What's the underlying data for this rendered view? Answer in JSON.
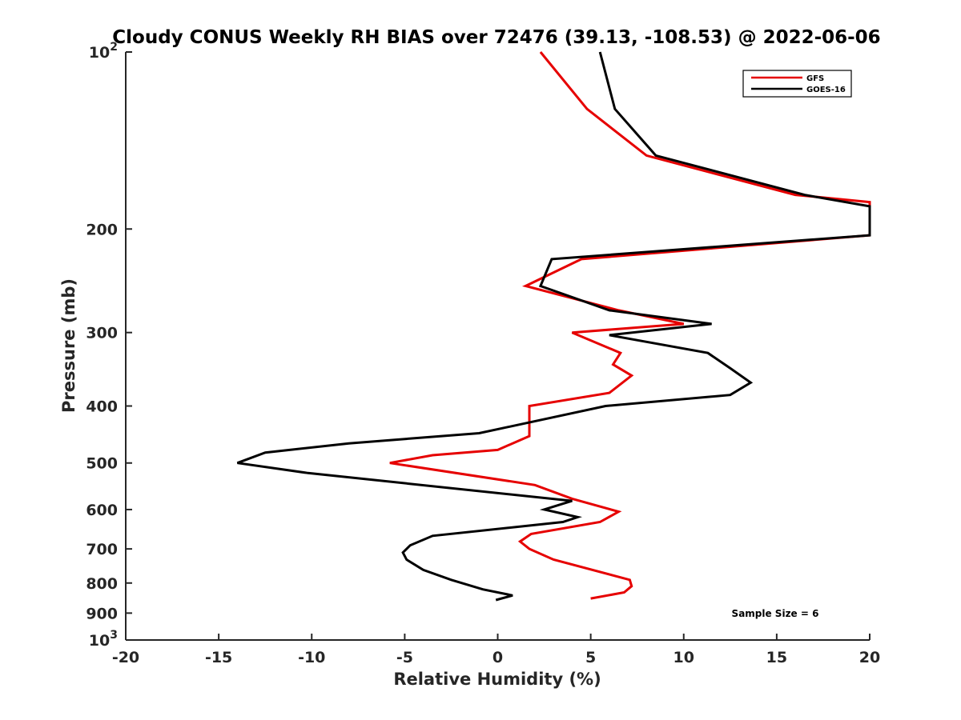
{
  "chart_data": {
    "type": "line",
    "title": "Cloudy CONUS Weekly RH BIAS over 72476 (39.13, -108.53) @ 2022-06-06",
    "xlabel": "Relative Humidity (%)",
    "ylabel": "Pressure (mb)",
    "xlim": [
      -20,
      20
    ],
    "ylim": [
      100,
      1000
    ],
    "yscale": "log",
    "y_reversed": true,
    "xticks": [
      -20,
      -15,
      -10,
      -5,
      0,
      5,
      10,
      15,
      20
    ],
    "xtick_labels": [
      "-20",
      "-15",
      "-10",
      "-5",
      "0",
      "5",
      "10",
      "15",
      "20"
    ],
    "yticks": [
      {
        "value": 100,
        "base": "10",
        "exp": "2"
      },
      {
        "value": 200,
        "label": "200"
      },
      {
        "value": 300,
        "label": "300"
      },
      {
        "value": 400,
        "label": "400"
      },
      {
        "value": 500,
        "label": "500"
      },
      {
        "value": 600,
        "label": "600"
      },
      {
        "value": 700,
        "label": "700"
      },
      {
        "value": 800,
        "label": "800"
      },
      {
        "value": 900,
        "label": "900"
      },
      {
        "value": 1000,
        "base": "10",
        "exp": "3"
      }
    ],
    "grid": false,
    "legend": {
      "position": "top-right",
      "entries": [
        "GFS",
        "GOES-16"
      ]
    },
    "annotation": "Sample Size = 6",
    "series": [
      {
        "name": "GFS",
        "color": "#e60000",
        "points": [
          [
            2.3,
            100
          ],
          [
            4.8,
            125
          ],
          [
            8.0,
            150
          ],
          [
            16.0,
            175
          ],
          [
            20.0,
            180
          ],
          [
            20.0,
            205
          ],
          [
            4.5,
            225
          ],
          [
            1.5,
            250
          ],
          [
            6.5,
            275
          ],
          [
            10.0,
            290
          ],
          [
            4.0,
            300
          ],
          [
            6.6,
            325
          ],
          [
            6.2,
            340
          ],
          [
            7.2,
            355
          ],
          [
            6.0,
            380
          ],
          [
            1.7,
            400
          ],
          [
            1.7,
            450
          ],
          [
            0.0,
            475
          ],
          [
            -3.5,
            485
          ],
          [
            -5.8,
            500
          ],
          [
            2.0,
            545
          ],
          [
            4.0,
            575
          ],
          [
            6.5,
            605
          ],
          [
            5.5,
            630
          ],
          [
            1.8,
            660
          ],
          [
            1.2,
            680
          ],
          [
            1.7,
            700
          ],
          [
            3.0,
            730
          ],
          [
            7.1,
            790
          ],
          [
            7.2,
            810
          ],
          [
            6.8,
            830
          ],
          [
            5.0,
            850
          ]
        ]
      },
      {
        "name": "GOES-16",
        "color": "#000000",
        "points": [
          [
            5.5,
            100
          ],
          [
            6.3,
            125
          ],
          [
            8.5,
            150
          ],
          [
            16.5,
            175
          ],
          [
            20.0,
            183
          ],
          [
            20.0,
            205
          ],
          [
            2.9,
            225
          ],
          [
            2.3,
            250
          ],
          [
            6.0,
            275
          ],
          [
            11.5,
            290
          ],
          [
            6.0,
            303
          ],
          [
            11.3,
            325
          ],
          [
            12.5,
            345
          ],
          [
            13.6,
            365
          ],
          [
            12.5,
            383
          ],
          [
            5.8,
            400
          ],
          [
            -1.0,
            445
          ],
          [
            -8.0,
            463
          ],
          [
            -12.5,
            480
          ],
          [
            -14.0,
            500
          ],
          [
            -10.2,
            520
          ],
          [
            4.0,
            580
          ],
          [
            2.5,
            600
          ],
          [
            4.3,
            618
          ],
          [
            3.5,
            630
          ],
          [
            -3.5,
            665
          ],
          [
            -4.7,
            690
          ],
          [
            -5.1,
            710
          ],
          [
            -4.9,
            730
          ],
          [
            -4.0,
            760
          ],
          [
            -2.5,
            790
          ],
          [
            -0.8,
            820
          ],
          [
            0.8,
            840
          ],
          [
            -0.1,
            855
          ]
        ]
      }
    ]
  }
}
